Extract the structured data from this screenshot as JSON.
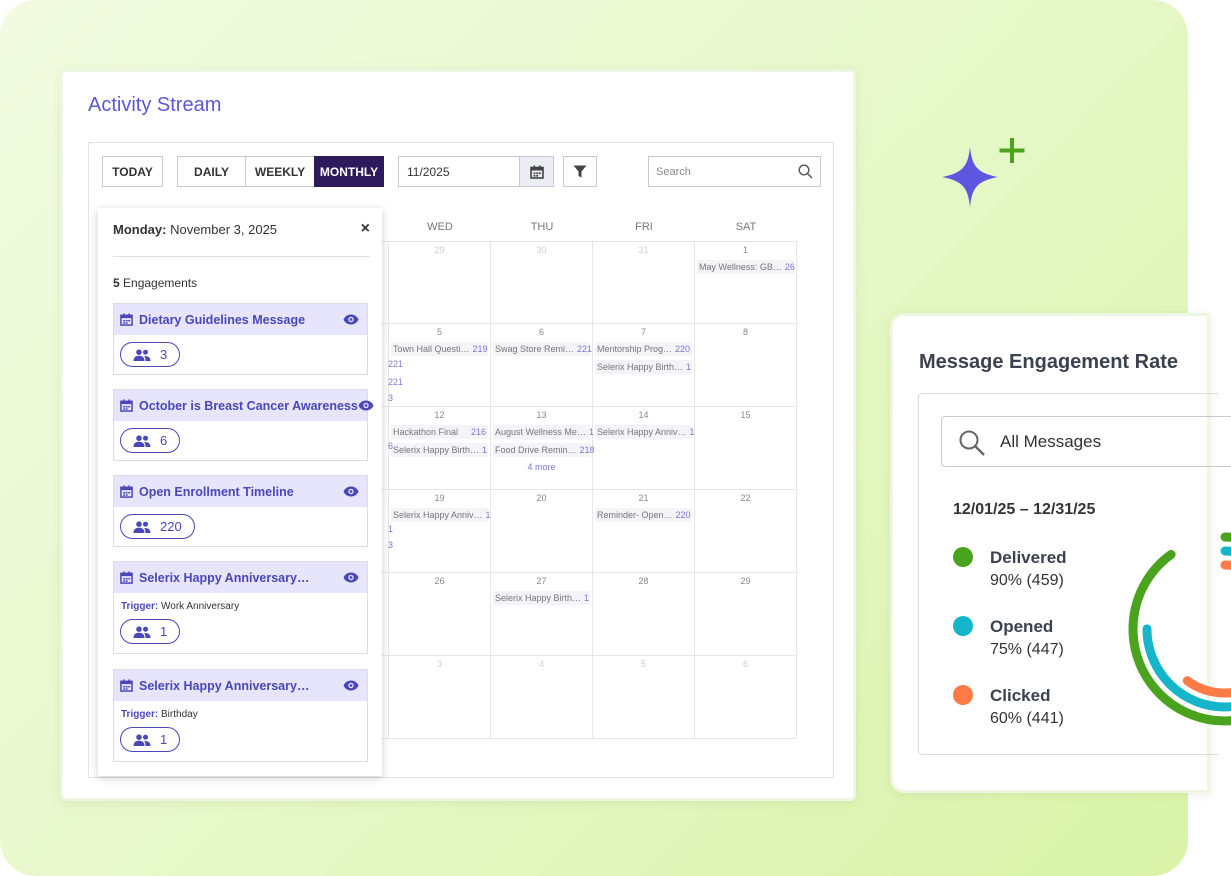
{
  "activity_stream": {
    "title": "Activity Stream",
    "toolbar": {
      "today_label": "TODAY",
      "daily_label": "DAILY",
      "weekly_label": "WEEKLY",
      "monthly_label": "MONTHLY",
      "active_view": "MONTHLY",
      "date_value": "11/2025",
      "search_placeholder": "Search"
    },
    "weekday_headers": [
      "WED",
      "THU",
      "FRI",
      "SAT"
    ],
    "rows": [
      [
        {
          "day": "29",
          "faded": true,
          "events": []
        },
        {
          "day": "30",
          "faded": true,
          "events": []
        },
        {
          "day": "31",
          "faded": true,
          "events": []
        },
        {
          "day": "1",
          "faded": false,
          "events": [
            {
              "name": "May Wellness: GB…",
              "count": "26"
            }
          ]
        }
      ],
      [
        {
          "day": "5",
          "faded": false,
          "events": [
            {
              "name": "Town Hall Questi…",
              "count": "219"
            }
          ]
        },
        {
          "day": "6",
          "faded": false,
          "events": [
            {
              "name": "Swag Store Remi…",
              "count": "221"
            }
          ]
        },
        {
          "day": "7",
          "faded": false,
          "events": [
            {
              "name": "Mentorship Prog…",
              "count": "220"
            },
            {
              "name": "Selerix Happy Birth…",
              "count": "1"
            }
          ]
        },
        {
          "day": "8",
          "faded": false,
          "events": []
        }
      ],
      [
        {
          "day": "12",
          "faded": false,
          "events": [
            {
              "name": "Hackathon Final",
              "count": "216"
            },
            {
              "name": "Selerix Happy Birth…",
              "count": "1"
            }
          ]
        },
        {
          "day": "13",
          "faded": false,
          "events": [
            {
              "name": "August Wellness Me…",
              "count": "1"
            },
            {
              "name": "Food Drive Remin…",
              "count": "218"
            }
          ],
          "more": "4 more"
        },
        {
          "day": "14",
          "faded": false,
          "events": [
            {
              "name": "Selerix Happy Anniv…",
              "count": "1"
            }
          ]
        },
        {
          "day": "15",
          "faded": false,
          "events": []
        }
      ],
      [
        {
          "day": "19",
          "faded": false,
          "events": [
            {
              "name": "Selerix Happy Anniv…",
              "count": "1"
            }
          ]
        },
        {
          "day": "20",
          "faded": false,
          "events": []
        },
        {
          "day": "21",
          "faded": false,
          "events": [
            {
              "name": "Reminder- Open…",
              "count": "220"
            }
          ]
        },
        {
          "day": "22",
          "faded": false,
          "events": []
        }
      ],
      [
        {
          "day": "26",
          "faded": false,
          "events": []
        },
        {
          "day": "27",
          "faded": false,
          "events": [
            {
              "name": "Selerix Happy Birth…",
              "count": "1"
            }
          ]
        },
        {
          "day": "28",
          "faded": false,
          "events": []
        },
        {
          "day": "29",
          "faded": false,
          "events": []
        }
      ],
      [
        {
          "day": "3",
          "faded": true,
          "events": []
        },
        {
          "day": "4",
          "faded": true,
          "events": []
        },
        {
          "day": "5",
          "faded": true,
          "events": []
        },
        {
          "day": "6",
          "faded": true,
          "events": []
        }
      ]
    ],
    "hidden_column_fragments": [
      "221",
      "221",
      "3",
      "6",
      "1",
      "3"
    ],
    "popover": {
      "day_label": "Monday:",
      "date_text": "November 3, 2025",
      "close": "×",
      "engagement_count": "5",
      "engagement_word": "Engagements",
      "engagements": [
        {
          "title": "Dietary Guidelines Message",
          "trigger_label": "",
          "trigger": "",
          "recipients": "3"
        },
        {
          "title": "October is Breast Cancer Awareness",
          "trigger_label": "",
          "trigger": "",
          "recipients": "6"
        },
        {
          "title": "Open Enrollment Timeline",
          "trigger_label": "",
          "trigger": "",
          "recipients": "220"
        },
        {
          "title": "Selerix Happy Anniversary…",
          "trigger_label": "Trigger:",
          "trigger": "Work Anniversary",
          "recipients": "1"
        },
        {
          "title": "Selerix Happy Anniversary…",
          "trigger_label": "Trigger:",
          "trigger": "Birthday",
          "recipients": "1"
        }
      ]
    }
  },
  "engagement_rate": {
    "title": "Message Engagement Rate",
    "search_value": "All Messages",
    "date_range": "12/01/25 – 12/31/25",
    "legend": [
      {
        "name": "Delivered",
        "value": "90% (459)",
        "color": "#4aa31c",
        "percent": 90
      },
      {
        "name": "Opened",
        "value": "75% (447)",
        "color": "#15b5cc",
        "percent": 75
      },
      {
        "name": "Clicked",
        "value": "60% (441)",
        "color": "#ff7a45",
        "percent": 60
      }
    ]
  },
  "colors": {
    "accent": "#5b58d6",
    "active_button": "#2d1a5c",
    "sparkle": "#5c56e0",
    "sparkle_plus": "#4aa31c"
  }
}
